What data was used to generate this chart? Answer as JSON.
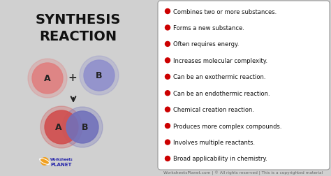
{
  "bg_color": "#d0d0d0",
  "title_line1": "SYNTHESIS",
  "title_line2": "REACTION",
  "title_color": "#111111",
  "title_fontsize": 14,
  "bullet_points": [
    "Combines two or more substances.",
    "Forms a new substance.",
    "Often requires energy.",
    "Increases molecular complexity.",
    "Can be an exothermic reaction.",
    "Can be an endothermic reaction.",
    "Chemical creation reaction.",
    "Produces more complex compounds.",
    "Involves multiple reactants.",
    "Broad applicability in chemistry."
  ],
  "bullet_color": "#cc0000",
  "bullet_text_color": "#111111",
  "bullet_fontsize": 6.0,
  "right_box_bg": "#ffffff",
  "right_box_edge": "#999999",
  "footer_text": "WorksheetsPlanet.com | © All rights reserved | This is a copyrighted material",
  "footer_fontsize": 4.2,
  "circle_A_color": "#e08080",
  "circle_B_color": "#9090cc",
  "circle_AB_A_color": "#d05050",
  "circle_AB_B_color": "#7070bb",
  "plus_color": "#333333",
  "arrow_color": "#222222",
  "label_color": "#222222",
  "label_fontsize": 9,
  "logo_orange": "#f0a020",
  "logo_blue": "#2222aa",
  "logo_small_text": "Worksheets",
  "logo_big_text": "PLANET",
  "logo_small_fs": 3.5,
  "logo_big_fs": 5.0
}
